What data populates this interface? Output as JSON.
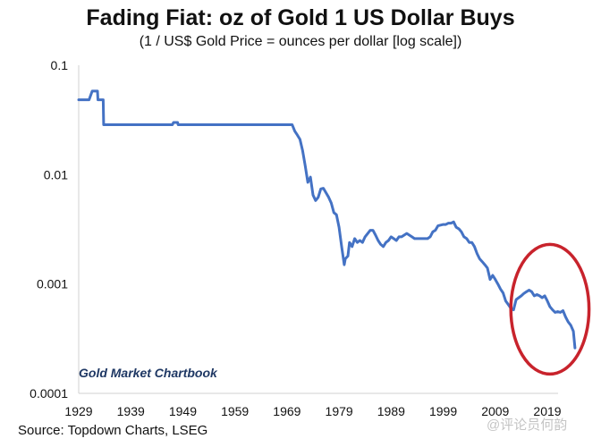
{
  "colors": {
    "line": "#4472C4",
    "highlight": "#C8232C",
    "branding": "#1F3864"
  },
  "chart_data": {
    "type": "line",
    "title": "Fading Fiat: oz of Gold 1 US Dollar Buys",
    "subtitle": "(1 / US$ Gold Price = ounces per dollar [log scale])",
    "y_scale": "log",
    "ylim": [
      0.0001,
      0.1
    ],
    "xlim": [
      1929,
      2024
    ],
    "y_ticks": [
      "0.1",
      "0.01",
      "0.001",
      "0.0001"
    ],
    "y_tick_values": [
      0.1,
      0.01,
      0.001,
      0.0001
    ],
    "x_ticks": [
      "1929",
      "1939",
      "1949",
      "1959",
      "1969",
      "1979",
      "1989",
      "1999",
      "2009",
      "2019"
    ],
    "x_tick_values": [
      1929,
      1939,
      1949,
      1959,
      1969,
      1979,
      1989,
      1999,
      2009,
      2019
    ],
    "grid": false,
    "annotation": "Gold Market Chartbook",
    "highlight": {
      "shape": "ellipse",
      "x_range": [
        2012,
        2027
      ],
      "y_range": [
        0.00015,
        0.0023
      ]
    },
    "x": [
      1929,
      1931,
      1931.6,
      1932.6,
      1932.7,
      1933.7,
      1933.8,
      1934.5,
      1935,
      1940,
      1945,
      1947,
      1947.2,
      1948,
      1948.1,
      1950,
      1955,
      1960,
      1965,
      1969,
      1970,
      1970.5,
      1971,
      1971.5,
      1972,
      1972.5,
      1973,
      1973.5,
      1974,
      1974.5,
      1975,
      1975.5,
      1976,
      1976.5,
      1977,
      1977.5,
      1978,
      1978.5,
      1979,
      1979.5,
      1980,
      1980.2,
      1980.7,
      1981,
      1981.5,
      1982,
      1982.5,
      1983,
      1983.5,
      1984,
      1985,
      1985.5,
      1986,
      1986.5,
      1987,
      1987.5,
      1988,
      1988.5,
      1989,
      1989.5,
      1990,
      1990.5,
      1991,
      1992,
      1993,
      1993.5,
      1994,
      1995,
      1996,
      1996.5,
      1997,
      1997.5,
      1998,
      1999,
      1999.5,
      2000,
      2000.5,
      2001,
      2001.5,
      2002,
      2002.5,
      2003,
      2003.5,
      2004,
      2004.5,
      2005,
      2005.5,
      2006,
      2006.5,
      2007,
      2007.5,
      2008,
      2008.5,
      2009,
      2009.5,
      2010,
      2010.5,
      2011,
      2011.5,
      2012,
      2012.5,
      2013,
      2013.5,
      2014,
      2014.5,
      2015,
      2015.5,
      2016,
      2016.5,
      2017,
      2017.5,
      2018,
      2018.5,
      2019,
      2019.5,
      2020,
      2020.5,
      2021,
      2021.5,
      2022,
      2022.5,
      2023,
      2023.5,
      2024,
      2024.3
    ],
    "y": [
      0.0484,
      0.0484,
      0.058,
      0.058,
      0.0484,
      0.0484,
      0.0286,
      0.0286,
      0.0286,
      0.0286,
      0.0286,
      0.0286,
      0.03,
      0.03,
      0.0286,
      0.0286,
      0.0286,
      0.0286,
      0.0286,
      0.0286,
      0.0286,
      0.025,
      0.023,
      0.021,
      0.0165,
      0.012,
      0.0085,
      0.0095,
      0.0065,
      0.0058,
      0.0062,
      0.0074,
      0.0075,
      0.0068,
      0.0062,
      0.0055,
      0.0045,
      0.0043,
      0.0033,
      0.0022,
      0.0015,
      0.0017,
      0.0018,
      0.0024,
      0.0022,
      0.0026,
      0.0024,
      0.0025,
      0.0024,
      0.0027,
      0.0031,
      0.0031,
      0.0028,
      0.0025,
      0.0023,
      0.0022,
      0.0024,
      0.0025,
      0.0027,
      0.0026,
      0.0025,
      0.0027,
      0.0027,
      0.0029,
      0.0027,
      0.0026,
      0.0026,
      0.0026,
      0.0026,
      0.0027,
      0.003,
      0.0031,
      0.0034,
      0.0035,
      0.0035,
      0.0036,
      0.0036,
      0.0037,
      0.0033,
      0.0032,
      0.003,
      0.0027,
      0.0026,
      0.0024,
      0.0024,
      0.0022,
      0.0019,
      0.0017,
      0.0016,
      0.0015,
      0.0014,
      0.0011,
      0.0012,
      0.0011,
      0.001,
      0.0009,
      0.00083,
      0.0007,
      0.00065,
      0.0006,
      0.00058,
      0.00072,
      0.00075,
      0.00078,
      0.00082,
      0.00085,
      0.00088,
      0.00085,
      0.00078,
      0.0008,
      0.00078,
      0.00075,
      0.00078,
      0.0007,
      0.00062,
      0.00058,
      0.00055,
      0.00056,
      0.00055,
      0.00057,
      0.0005,
      0.00045,
      0.00042,
      0.00037,
      0.00026
    ]
  },
  "source": "Source: Topdown Charts, LSEG",
  "watermark": "@评论员何韵"
}
